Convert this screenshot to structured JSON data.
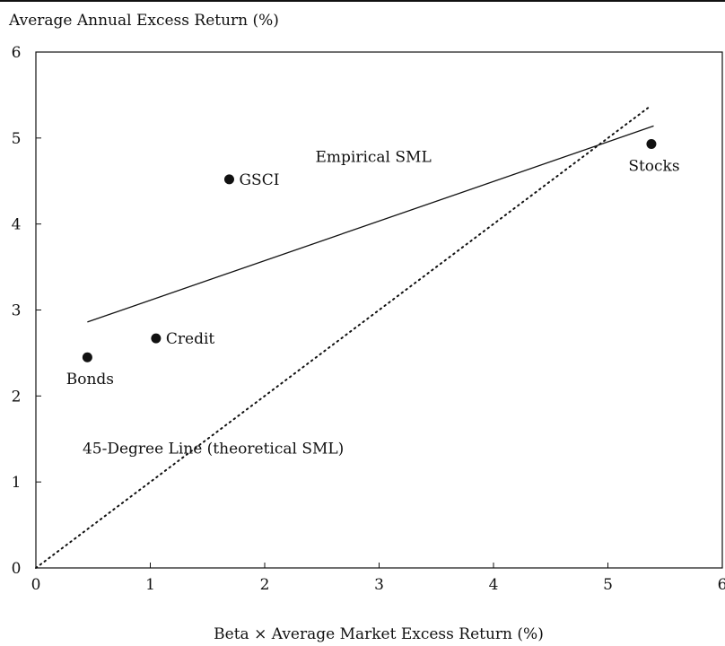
{
  "chart_data": {
    "type": "scatter",
    "title": "",
    "xlabel": "Beta × Average Market Excess Return (%)",
    "ylabel": "Average Annual Excess Return (%)",
    "xlim": [
      0,
      6
    ],
    "ylim": [
      0,
      6
    ],
    "xticks": [
      "0",
      "1",
      "2",
      "3",
      "4",
      "5",
      "6"
    ],
    "yticks": [
      "0",
      "1",
      "2",
      "3",
      "4",
      "5",
      "6"
    ],
    "grid": false,
    "points": [
      {
        "label": "Bonds",
        "x": 0.45,
        "y": 2.45,
        "label_side": "below"
      },
      {
        "label": "Credit",
        "x": 1.05,
        "y": 2.67,
        "label_side": "right"
      },
      {
        "label": "GSCI",
        "x": 1.69,
        "y": 4.52,
        "label_side": "right"
      },
      {
        "label": "Stocks",
        "x": 5.38,
        "y": 4.93,
        "label_side": "below"
      }
    ],
    "lines": [
      {
        "name": "Empirical SML",
        "style": "solid",
        "x": [
          0.45,
          5.4
        ],
        "y": [
          2.86,
          5.14
        ]
      },
      {
        "name": "45-Degree Line (theoretical SML)",
        "style": "dotted",
        "x": [
          0,
          5.35
        ],
        "y": [
          0,
          5.35
        ]
      }
    ],
    "annotations": [
      {
        "text": "Empirical SML",
        "x": 2.95,
        "y": 4.72
      },
      {
        "text": "45-Degree Line (theoretical SML)",
        "x": 1.55,
        "y": 1.33
      }
    ]
  }
}
